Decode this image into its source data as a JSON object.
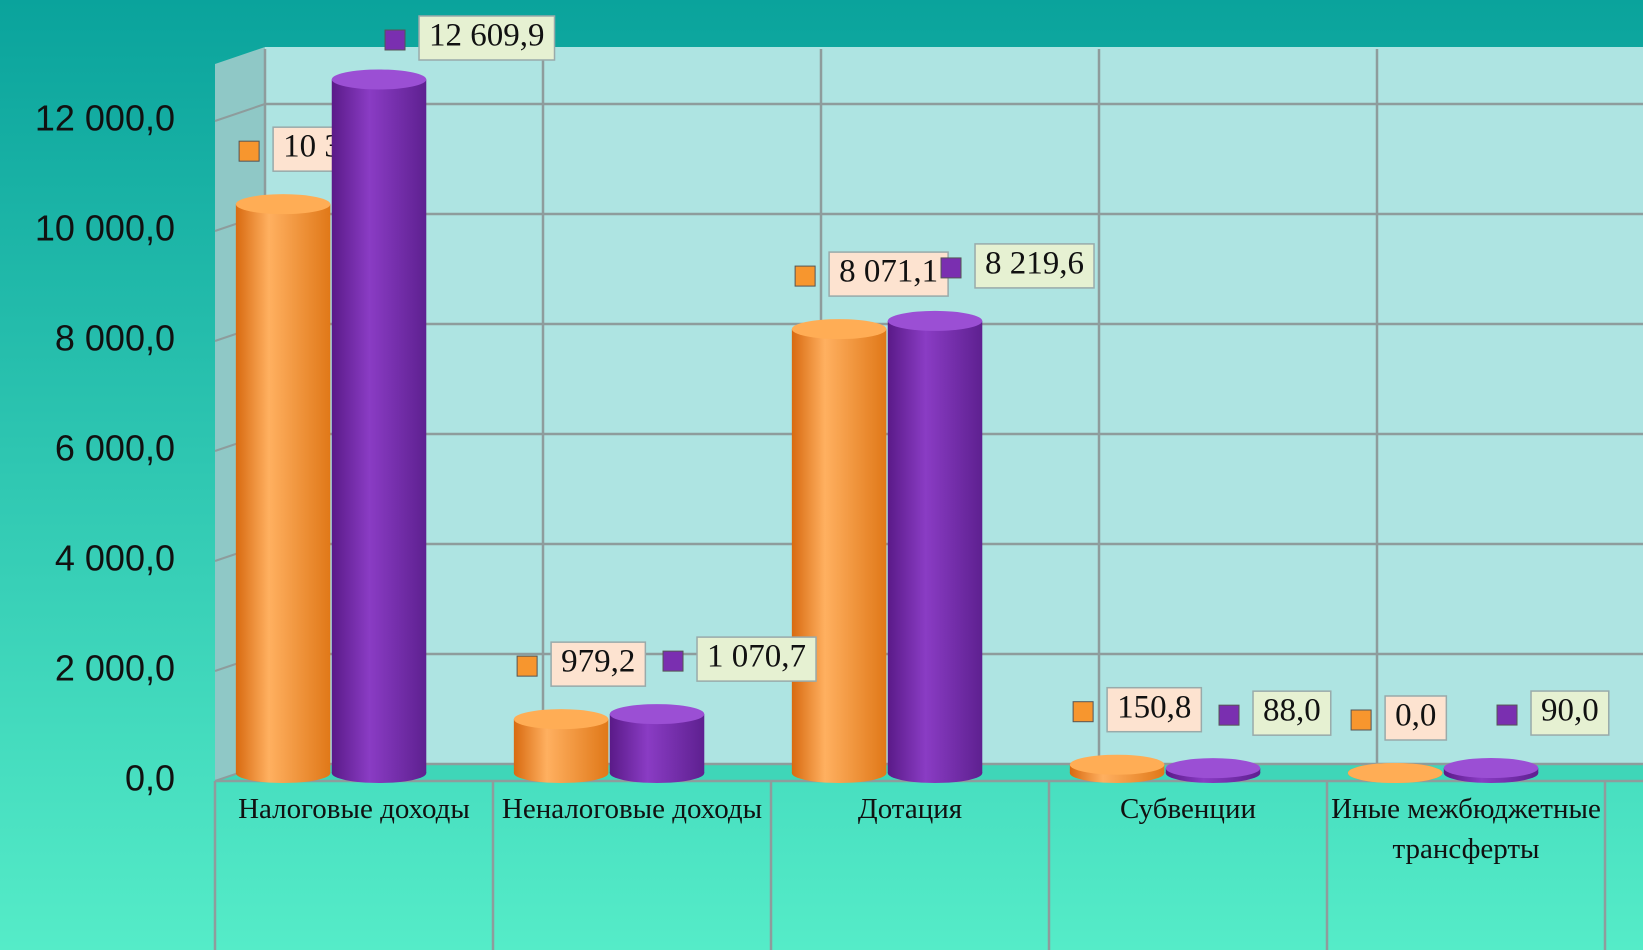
{
  "chart_data": {
    "type": "bar3d",
    "categories": [
      "Налоговые доходы",
      "Неналоговые доходы",
      "Дотация",
      "Субвенции",
      "Иные межбюджетные трансферты"
    ],
    "series": [
      {
        "color": "#f7962e",
        "values": [
          10342.4,
          979.2,
          8071.1,
          150.8,
          0.0
        ],
        "value_labels": [
          "10 342,4",
          "979,2",
          "8 071,1",
          "150,8",
          "0,0"
        ]
      },
      {
        "color": "#7a2fb0",
        "values": [
          12609.9,
          1070.7,
          8219.6,
          88.0,
          90.0
        ],
        "value_labels": [
          "12 609,9",
          "1 070,7",
          "8 219,6",
          "88,0",
          "90,0"
        ]
      }
    ],
    "ylim": [
      0,
      13000
    ],
    "yticks": [
      {
        "value": 0,
        "label": "0,0"
      },
      {
        "value": 2000,
        "label": "2 000,0"
      },
      {
        "value": 4000,
        "label": "4 000,0"
      },
      {
        "value": 6000,
        "label": "6 000,0"
      },
      {
        "value": 8000,
        "label": "8 000,0"
      },
      {
        "value": 10000,
        "label": "10 000,0"
      },
      {
        "value": 12000,
        "label": "12 000,0"
      }
    ],
    "grid": true
  }
}
